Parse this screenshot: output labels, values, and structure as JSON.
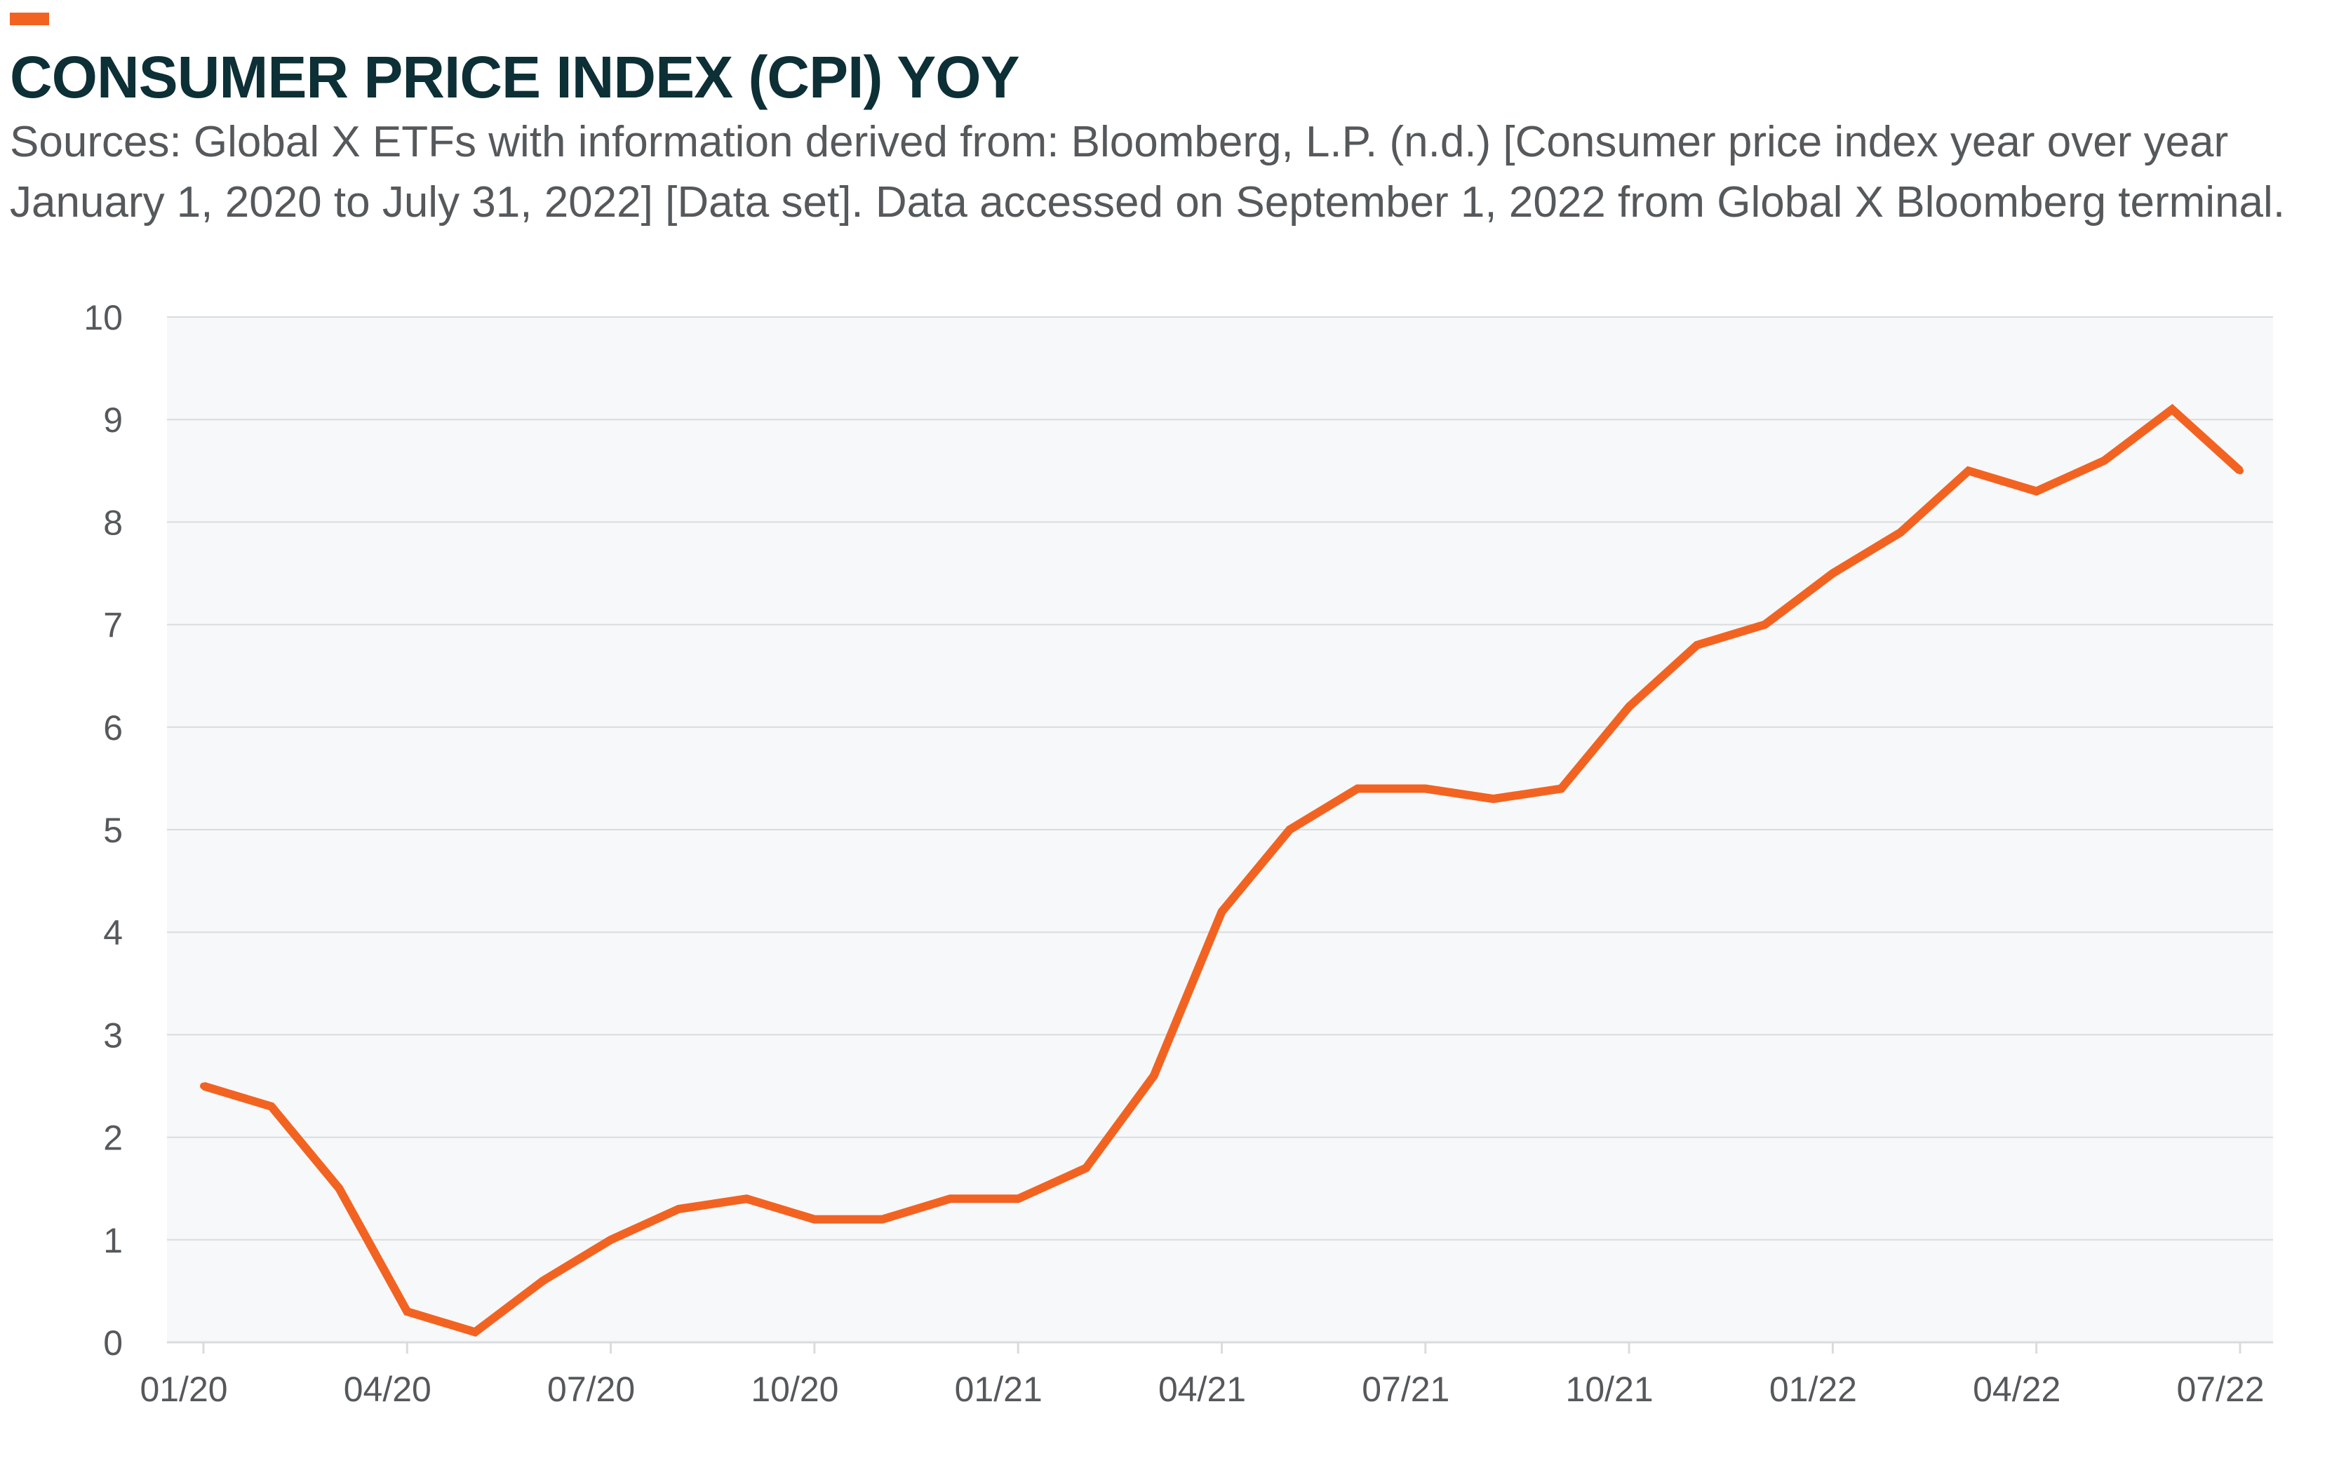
{
  "header": {
    "title": "CONSUMER PRICE INDEX (CPI) YOY",
    "source_line_1": "Sources: Global X ETFs with information derived from: Bloomberg, L.P. (n.d.) [Consumer price index year over year",
    "source_line_2": "January 1, 2020 to July 31, 2022] [Data set]. Data accessed on September 1, 2022 from Global X Bloomberg terminal."
  },
  "colors": {
    "accent": "#f26322",
    "line": "#f26322",
    "plot_background": "#f7f8f9",
    "gridline": "#d9dcde",
    "title_text": "#0d2f36",
    "body_text": "#55595c"
  },
  "chart_data": {
    "type": "line",
    "title": "CONSUMER PRICE INDEX (CPI) YOY",
    "xlabel": "",
    "ylabel": "",
    "ylim": [
      0,
      10
    ],
    "yticks": [
      0,
      1,
      2,
      3,
      4,
      5,
      6,
      7,
      8,
      9,
      10
    ],
    "xtick_labels": [
      "01/20",
      "04/20",
      "07/20",
      "10/20",
      "01/21",
      "04/21",
      "07/21",
      "10/21",
      "01/22",
      "04/22",
      "07/22"
    ],
    "grid": true,
    "legend": "none",
    "x": [
      "01/20",
      "02/20",
      "03/20",
      "04/20",
      "05/20",
      "06/20",
      "07/20",
      "08/20",
      "09/20",
      "10/20",
      "11/20",
      "12/20",
      "01/21",
      "02/21",
      "03/21",
      "04/21",
      "05/21",
      "06/21",
      "07/21",
      "08/21",
      "09/21",
      "10/21",
      "11/21",
      "12/21",
      "01/22",
      "02/22",
      "03/22",
      "04/22",
      "05/22",
      "06/22",
      "07/22"
    ],
    "series": [
      {
        "values": [
          2.5,
          2.3,
          1.5,
          0.3,
          0.1,
          0.6,
          1.0,
          1.3,
          1.4,
          1.2,
          1.2,
          1.4,
          1.4,
          1.7,
          2.6,
          4.2,
          5.0,
          5.4,
          5.4,
          5.3,
          5.4,
          6.2,
          6.8,
          7.0,
          7.5,
          7.9,
          8.5,
          8.3,
          8.6,
          9.1,
          8.5
        ]
      }
    ]
  }
}
